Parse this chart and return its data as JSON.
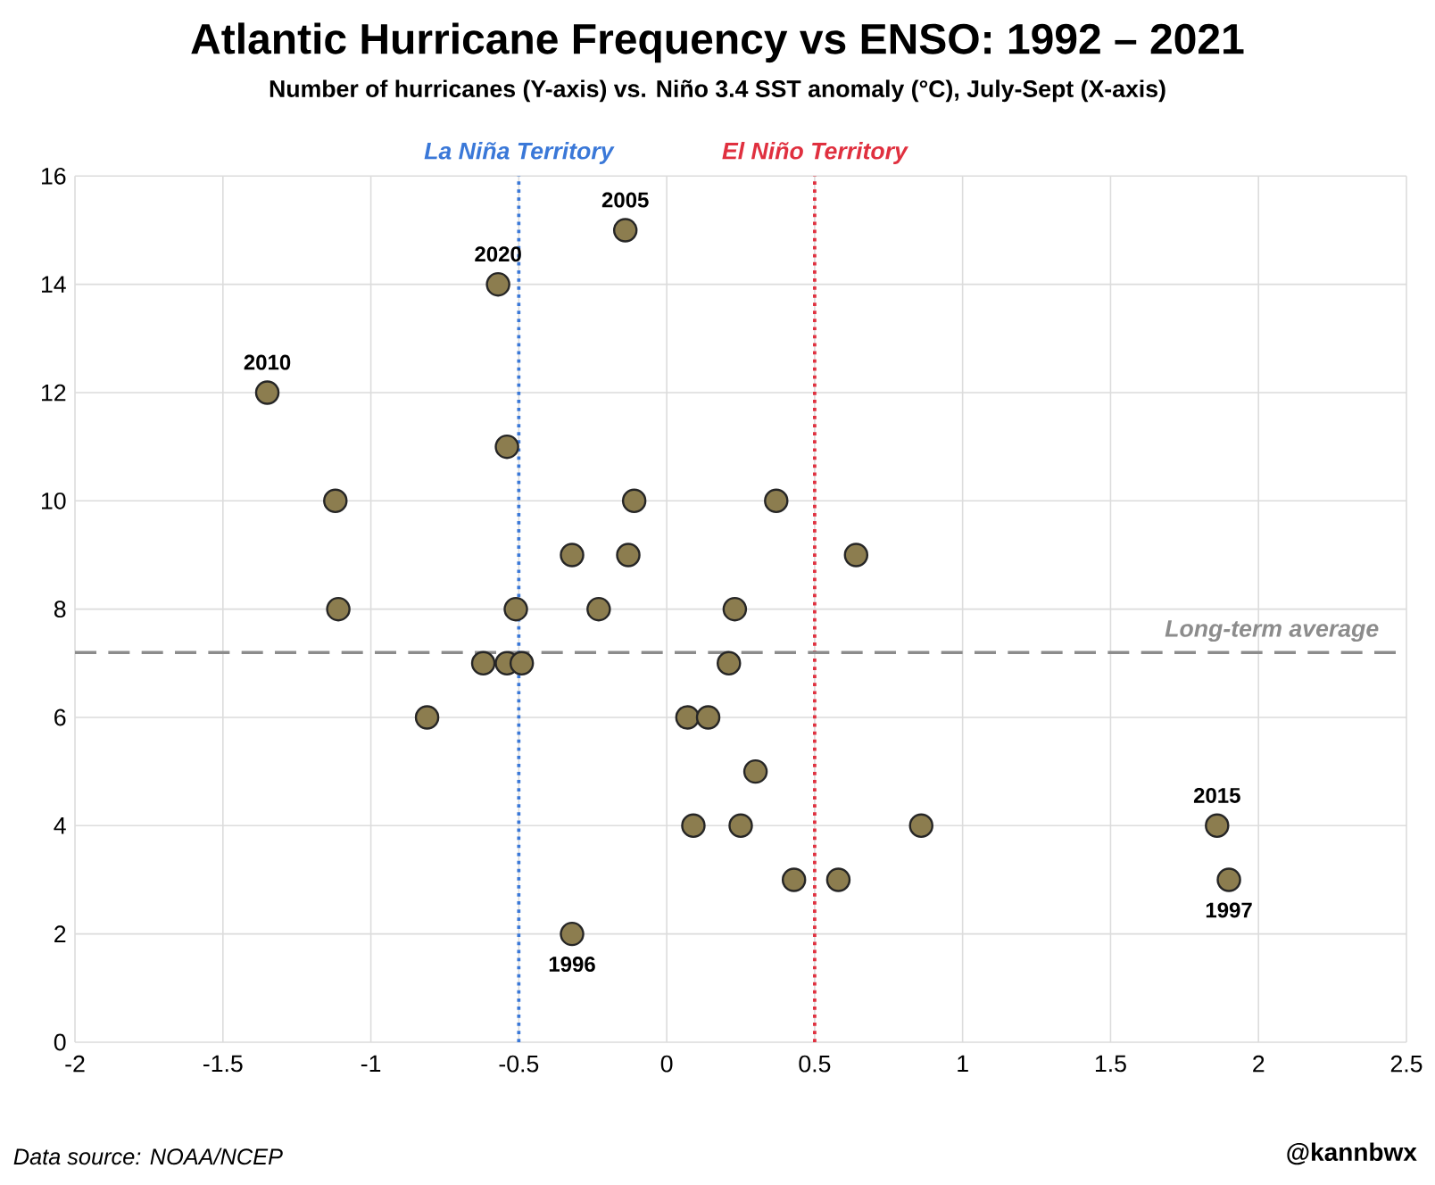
{
  "chart_data": {
    "type": "scatter",
    "title": "Atlantic Hurricane Frequency vs ENSO: 1992 – 2021",
    "subtitle": "Number of hurricanes (Y-axis) vs. Niño 3.4 SST anomaly (°C), July-Sept (X-axis)",
    "x": [
      -0.14,
      -0.57,
      -1.35,
      -0.54,
      -1.12,
      -0.11,
      0.37,
      -0.32,
      -0.13,
      0.64,
      -1.11,
      -0.51,
      -0.23,
      0.23,
      -0.62,
      -0.54,
      -0.49,
      0.21,
      -0.81,
      0.07,
      0.14,
      0.3,
      0.09,
      0.25,
      0.86,
      1.86,
      0.43,
      0.58,
      1.9,
      -0.32
    ],
    "values": [
      15,
      14,
      12,
      11,
      10,
      10,
      10,
      9,
      9,
      9,
      8,
      8,
      8,
      8,
      7,
      7,
      7,
      7,
      6,
      6,
      6,
      5,
      4,
      4,
      4,
      4,
      3,
      3,
      3,
      2
    ],
    "color": "#8c7d4f",
    "marker": "circle",
    "xlim": [
      -2,
      2.5
    ],
    "xticks": [
      -2,
      -1.5,
      -1,
      -0.5,
      0,
      0.5,
      1,
      1.5,
      2,
      2.5
    ],
    "ylim": [
      0,
      16
    ],
    "yticks": [
      0,
      2,
      4,
      6,
      8,
      10,
      12,
      14,
      16
    ],
    "grid": true,
    "ref_lines": [
      {
        "axis": "x",
        "value": -0.5,
        "label": "La Niña Territory",
        "color": "#3a78d8",
        "line_style": "dotted"
      },
      {
        "axis": "x",
        "value": 0.5,
        "label": "El Niño Territory",
        "color": "#e0303f",
        "line_style": "dotted"
      },
      {
        "axis": "y",
        "value": 7.2,
        "label": "Long-term average",
        "color": "#8c8c8c",
        "line_style": "dashed"
      }
    ],
    "annotations": [
      {
        "text": "2005",
        "x": -0.14,
        "y": 15
      },
      {
        "text": "2020",
        "x": -0.57,
        "y": 14
      },
      {
        "text": "2010",
        "x": -1.35,
        "y": 12
      },
      {
        "text": "2015",
        "x": 1.86,
        "y": 4
      },
      {
        "text": "1997",
        "x": 1.9,
        "y": 3
      },
      {
        "text": "1996",
        "x": -0.32,
        "y": 2
      },
      "Data source: NOAA/NCEP",
      "@kannbwx"
    ]
  }
}
